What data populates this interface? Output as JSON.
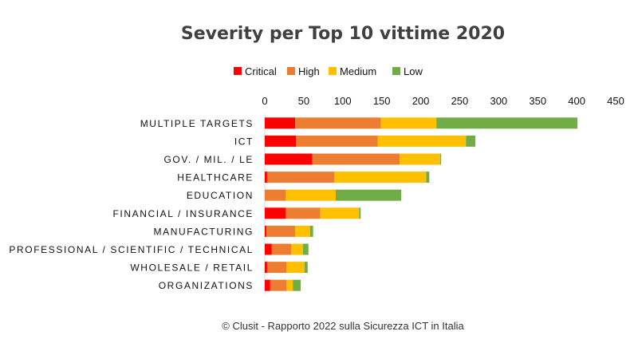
{
  "chart_data": {
    "type": "bar",
    "orientation": "horizontal",
    "stacked": true,
    "title": "Severity per Top 10 vittime 2020",
    "caption": "© Clusit - Rapporto 2022 sulla Sicurezza ICT in Italia",
    "categories": [
      "MULTIPLE TARGETS",
      "ICT",
      "GOV. / MIL. / LE",
      "HEALTHCARE",
      "EDUCATION",
      "FINANCIAL / INSURANCE",
      "MANUFACTURING",
      "PROFESSIONAL / SCIENTIFIC / TECHNICAL",
      "WHOLESALE / RETAIL",
      "ORGANIZATIONS"
    ],
    "series": [
      {
        "name": "Critical",
        "color": "#ff0000",
        "values": [
          39,
          40,
          61,
          3,
          0,
          27,
          2,
          9,
          3,
          7
        ]
      },
      {
        "name": "High",
        "color": "#ed7d31",
        "values": [
          110,
          105,
          112,
          86,
          27,
          44,
          37,
          25,
          25,
          21
        ]
      },
      {
        "name": "Medium",
        "color": "#ffc000",
        "values": [
          71,
          113,
          52,
          118,
          64,
          50,
          19,
          15,
          23,
          8
        ]
      },
      {
        "name": "Low",
        "color": "#70ad47",
        "values": [
          181,
          12,
          1,
          4,
          84,
          2,
          4,
          7,
          4,
          10
        ]
      }
    ],
    "xlim": [
      0,
      450
    ],
    "xticks": [
      "0",
      "50",
      "100",
      "150",
      "200",
      "250",
      "300",
      "350",
      "400",
      "450"
    ],
    "x_axis_position": "top",
    "legend_position": "top",
    "grid": false
  }
}
